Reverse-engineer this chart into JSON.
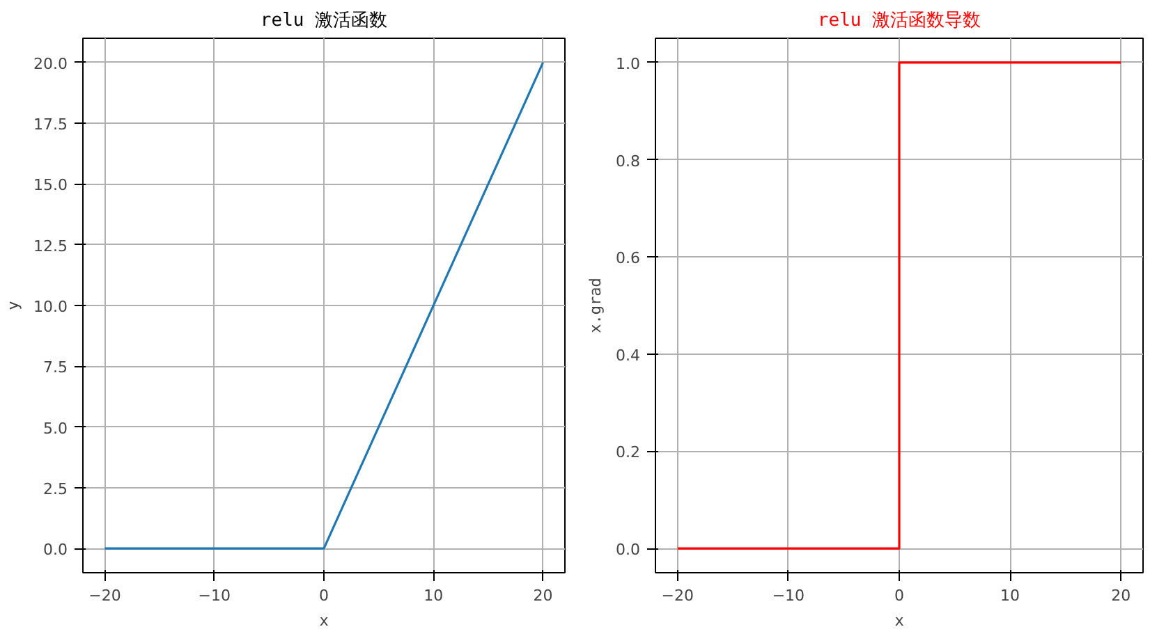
{
  "chart_data": [
    {
      "type": "line",
      "title": "relu 激活函数",
      "xlabel": "x",
      "ylabel": "y",
      "x": [
        -20,
        0,
        20
      ],
      "xlim": [
        -22,
        22
      ],
      "xticks": [
        -20,
        -10,
        0,
        10,
        20
      ],
      "ylim": [
        -1,
        21
      ],
      "yticks": [
        {
          "value": 0,
          "label": "0.0"
        },
        {
          "value": 2.5,
          "label": "2.5"
        },
        {
          "value": 5,
          "label": "5.0"
        },
        {
          "value": 7.5,
          "label": "7.5"
        },
        {
          "value": 10,
          "label": "10.0"
        },
        {
          "value": 12.5,
          "label": "12.5"
        },
        {
          "value": 15,
          "label": "15.0"
        },
        {
          "value": 17.5,
          "label": "17.5"
        },
        {
          "value": 20,
          "label": "20.0"
        }
      ],
      "grid": true,
      "series": [
        {
          "color": "#1f77b4",
          "values": [
            0,
            0,
            20
          ]
        }
      ]
    },
    {
      "type": "line",
      "title": "relu 激活函数导数",
      "xlabel": "x",
      "ylabel": "x.grad",
      "x": [
        -20,
        0,
        0,
        20
      ],
      "xlim": [
        -22,
        22
      ],
      "xticks": [
        -20,
        -10,
        0,
        10,
        20
      ],
      "ylim": [
        -0.05,
        1.05
      ],
      "yticks": [
        {
          "value": 0,
          "label": "0.0"
        },
        {
          "value": 0.2,
          "label": "0.2"
        },
        {
          "value": 0.4,
          "label": "0.4"
        },
        {
          "value": 0.6,
          "label": "0.6"
        },
        {
          "value": 0.8,
          "label": "0.8"
        },
        {
          "value": 1,
          "label": "1.0"
        }
      ],
      "grid": true,
      "series": [
        {
          "color": "#ff0000",
          "values": [
            0,
            0,
            1,
            1
          ]
        }
      ]
    }
  ]
}
